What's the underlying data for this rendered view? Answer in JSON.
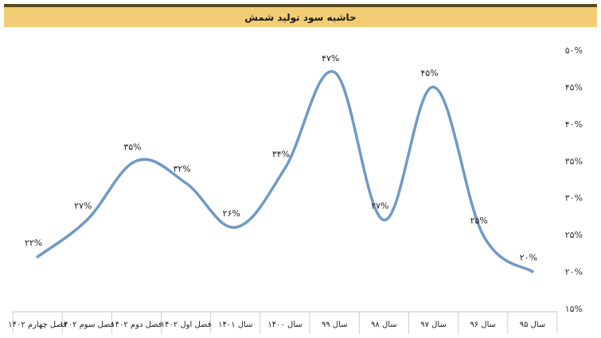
{
  "header": {
    "title": "حاشیه سود تولید شمش"
  },
  "chart_data": {
    "type": "line",
    "title": "حاشیه سود تولید شمش",
    "categories": [
      "سال ۹۵",
      "سال ۹۶",
      "سال ۹۷",
      "سال ۹۸",
      "سال ۹۹",
      "سال ۱۴۰۰",
      "سال ۱۴۰۱",
      "فصل اول ۱۴۰۲",
      "فصل دوم ۱۴۰۲",
      "فصل سوم ۱۴۰۲",
      "فصل چهارم ۱۴۰۲"
    ],
    "series": [
      {
        "values": [
          20,
          25,
          45,
          27,
          47,
          34,
          26,
          32,
          35,
          27,
          22
        ],
        "labels": [
          "۲۰%",
          "۲۵%",
          "۴۵%",
          "۲۷%",
          "۴۷%",
          "۳۴%",
          "۲۶%",
          "۳۲%",
          "۳۵%",
          "۲۷%",
          "۲۲%"
        ],
        "color": "#6f9ac6"
      }
    ],
    "ylim": [
      15,
      50
    ],
    "y_ticks": [
      15,
      20,
      25,
      30,
      35,
      40,
      45,
      50
    ],
    "y_tick_labels": [
      "۱۵%",
      "۲۰%",
      "۲۵%",
      "۳۰%",
      "۳۵%",
      "۴۰%",
      "۴۵%",
      "۵۰%"
    ],
    "y_axis_position": "right",
    "grid": false,
    "legend": "none",
    "smooth": true
  }
}
